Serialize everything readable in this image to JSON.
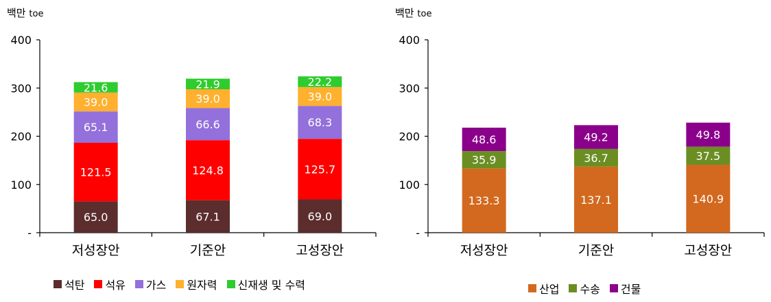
{
  "chart_data": [
    {
      "type": "bar",
      "stacked": true,
      "unit_label_main": "백만",
      "unit_label_sub": "toe",
      "categories": [
        "저성장안",
        "기준안",
        "고성장안"
      ],
      "ylim": [
        0,
        400
      ],
      "yticks": [
        "-",
        "100",
        "200",
        "300",
        "400"
      ],
      "legend_position": "bottom",
      "series": [
        {
          "name": "석탄",
          "color": "#5b2d2d",
          "values": [
            65.0,
            67.1,
            69.0
          ],
          "labels": [
            "65.0",
            "67.1",
            "69.0"
          ]
        },
        {
          "name": "석유",
          "color": "#ff0000",
          "values": [
            121.5,
            124.8,
            125.7
          ],
          "labels": [
            "121.5",
            "124.8",
            "125.7"
          ]
        },
        {
          "name": "가스",
          "color": "#9370db",
          "values": [
            65.1,
            66.6,
            68.3
          ],
          "labels": [
            "65.1",
            "66.6",
            "68.3"
          ]
        },
        {
          "name": "원자력",
          "color": "#ffb02e",
          "values": [
            39.0,
            39.0,
            39.0
          ],
          "labels": [
            "39.0",
            "39.0",
            "39.0"
          ]
        },
        {
          "name": "신재생 및 수력",
          "color": "#2ecc2e",
          "values": [
            21.6,
            21.9,
            22.2
          ],
          "labels": [
            "21.6",
            "21.9",
            "22.2"
          ]
        }
      ]
    },
    {
      "type": "bar",
      "stacked": true,
      "unit_label_main": "백만",
      "unit_label_sub": "toe",
      "categories": [
        "저성장안",
        "기준안",
        "고성장안"
      ],
      "ylim": [
        0,
        400
      ],
      "yticks": [
        "-",
        "100",
        "200",
        "300",
        "400"
      ],
      "legend_position": "bottom",
      "series": [
        {
          "name": "산업",
          "color": "#d2691e",
          "values": [
            133.3,
            137.1,
            140.9
          ],
          "labels": [
            "133.3",
            "137.1",
            "140.9"
          ]
        },
        {
          "name": "수송",
          "color": "#6b8e23",
          "values": [
            35.9,
            36.7,
            37.5
          ],
          "labels": [
            "35.9",
            "36.7",
            "37.5"
          ]
        },
        {
          "name": "건물",
          "color": "#8b008b",
          "values": [
            48.6,
            49.2,
            49.8
          ],
          "labels": [
            "48.6",
            "49.2",
            "49.8"
          ]
        }
      ]
    }
  ]
}
